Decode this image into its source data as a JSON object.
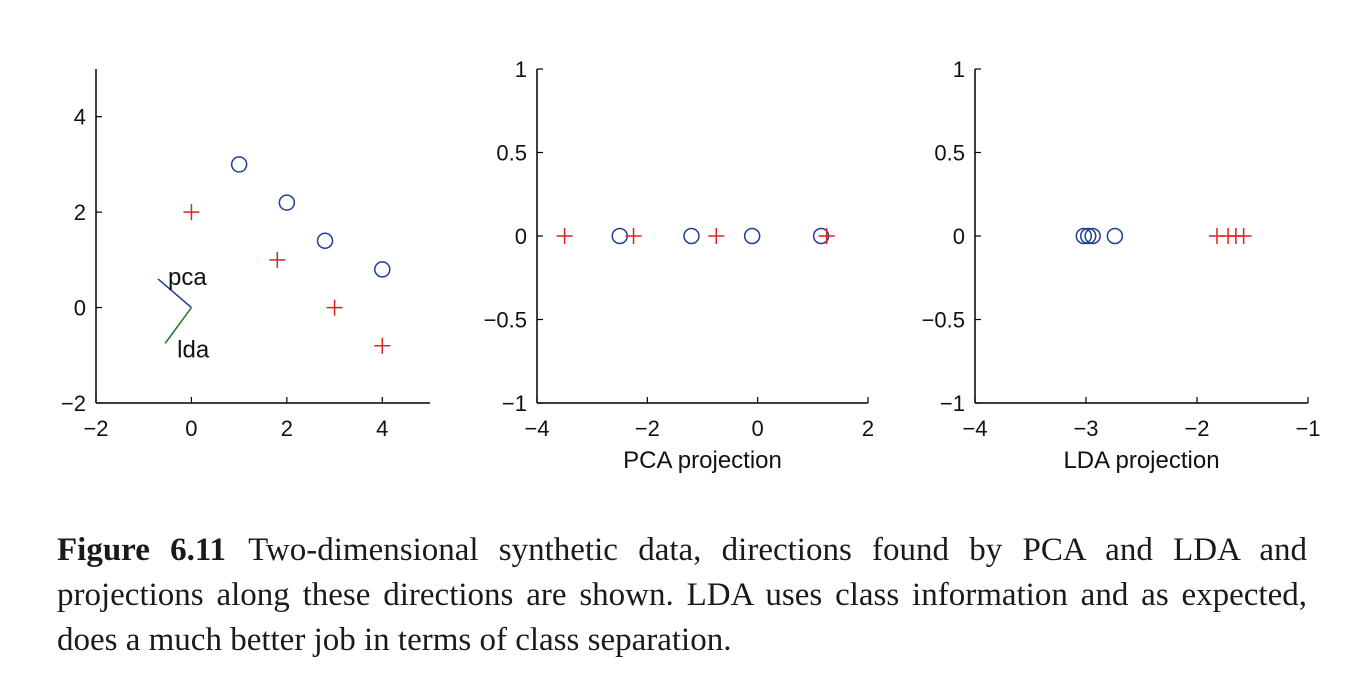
{
  "chart_data": [
    {
      "type": "scatter",
      "panel": "left",
      "xlim": [
        -2,
        5
      ],
      "ylim": [
        -2,
        5
      ],
      "x_ticks": [
        -2,
        0,
        2,
        4
      ],
      "y_ticks": [
        -2,
        0,
        2,
        4
      ],
      "series": [
        {
          "marker": "circle",
          "color": "#1f3f99",
          "points": [
            [
              1,
              3
            ],
            [
              2,
              2.2
            ],
            [
              2.8,
              1.4
            ],
            [
              4,
              0.8
            ]
          ]
        },
        {
          "marker": "plus",
          "color": "#e02020",
          "points": [
            [
              0,
              2
            ],
            [
              1.8,
              1
            ],
            [
              3,
              0
            ],
            [
              4,
              -0.8
            ]
          ]
        }
      ],
      "direction_lines": [
        {
          "label": "pca",
          "color": "#1f3f99",
          "from": [
            0,
            0
          ],
          "to": [
            -0.7,
            0.6
          ]
        },
        {
          "label": "lda",
          "color": "#2a7a2a",
          "from": [
            0,
            0
          ],
          "to": [
            -0.55,
            -0.75
          ]
        }
      ],
      "grid": false
    },
    {
      "type": "scatter",
      "panel": "middle",
      "xlabel": "PCA projection",
      "xlim": [
        -4,
        2
      ],
      "ylim": [
        -1,
        1
      ],
      "x_ticks": [
        -4,
        -2,
        0,
        2
      ],
      "y_ticks": [
        -1,
        -0.5,
        0,
        0.5,
        1
      ],
      "series": [
        {
          "marker": "circle",
          "color": "#1f3f99",
          "points": [
            [
              -2.5,
              0
            ],
            [
              -1.2,
              0
            ],
            [
              -0.1,
              0
            ],
            [
              1.15,
              0
            ]
          ]
        },
        {
          "marker": "plus",
          "color": "#e02020",
          "points": [
            [
              -3.5,
              0
            ],
            [
              -2.25,
              0
            ],
            [
              -0.75,
              0
            ],
            [
              1.25,
              0
            ]
          ]
        }
      ],
      "grid": false
    },
    {
      "type": "scatter",
      "panel": "right",
      "xlabel": "LDA projection",
      "xlim": [
        -4,
        -1
      ],
      "ylim": [
        -1,
        1
      ],
      "x_ticks": [
        -4,
        -3,
        -2,
        -1
      ],
      "y_ticks": [
        -1,
        -0.5,
        0,
        0.5,
        1
      ],
      "series": [
        {
          "marker": "circle",
          "color": "#1f3f99",
          "points": [
            [
              -3.02,
              0
            ],
            [
              -2.98,
              0
            ],
            [
              -2.94,
              0
            ],
            [
              -2.74,
              0
            ]
          ]
        },
        {
          "marker": "plus",
          "color": "#e02020",
          "points": [
            [
              -1.82,
              0
            ],
            [
              -1.72,
              0
            ],
            [
              -1.65,
              0
            ],
            [
              -1.58,
              0
            ]
          ]
        }
      ],
      "grid": false
    }
  ],
  "caption": {
    "label": "Figure 6.11",
    "text": "Two-dimensional synthetic data, directions found by PCA and LDA and projections along these directions are shown. LDA uses class information and as expected, does a much better job in terms of class separation."
  }
}
